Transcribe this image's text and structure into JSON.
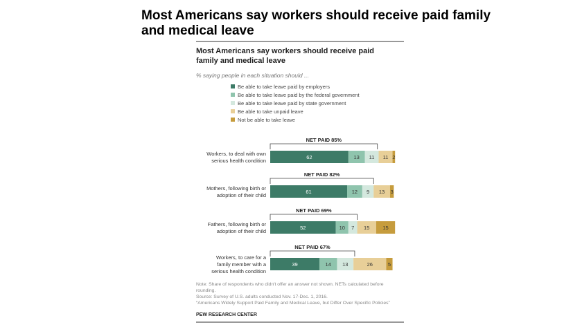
{
  "slide": {
    "title": "Most Americans say workers should receive paid family and medical leave"
  },
  "chart_data": {
    "type": "bar",
    "orientation": "horizontal",
    "stacked": true,
    "title": "Most Americans say workers should receive paid family and medical leave",
    "subtitle": "% saying people in each situation should ...",
    "xlabel": "",
    "ylabel": "",
    "xlim": [
      0,
      100
    ],
    "legend_position": "top",
    "grid": false,
    "categories": [
      "Workers, to deal with own serious health condition",
      "Mothers, following birth or adoption of their child",
      "Fathers, following birth or adoption of their child",
      "Workers, to care for a family member with a serious health condition"
    ],
    "category_lines": [
      [
        "Workers, to deal with own",
        "serious health condition"
      ],
      [
        "Mothers, following birth or",
        "adoption of their child"
      ],
      [
        "Fathers, following birth or",
        "adoption of their child"
      ],
      [
        "Workers, to care for a",
        "family member with a",
        "serious health condition"
      ]
    ],
    "net_labels": [
      "NET PAID 85%",
      "NET PAID 82%",
      "NET PAID 69%",
      "NET PAID 67%"
    ],
    "net_values": [
      85,
      82,
      69,
      67
    ],
    "series": [
      {
        "name": "Be able to take leave paid by employers",
        "color": "#3d7b67",
        "label_color": "#ffffff",
        "values": [
          62,
          61,
          52,
          39
        ]
      },
      {
        "name": "Be able to take leave paid by the federal government",
        "color": "#8fc4ad",
        "label_color": "#333333",
        "values": [
          13,
          12,
          10,
          14
        ]
      },
      {
        "name": "Be able to take leave paid by state government",
        "color": "#d4e8de",
        "label_color": "#333333",
        "values": [
          11,
          9,
          7,
          13
        ]
      },
      {
        "name": "Be able to take unpaid leave",
        "color": "#e8cf98",
        "label_color": "#333333",
        "values": [
          11,
          13,
          15,
          26
        ]
      },
      {
        "name": "Not be able to take leave",
        "color": "#c69c3d",
        "label_color": "#333333",
        "values": [
          2,
          3,
          15,
          5
        ]
      }
    ],
    "notes": [
      "Note: Share of respondents who didn't offer an answer not shown. NETs calculated before",
      "rounding.",
      "Source: Survey of U.S. adults conducted Nov. 17-Dec. 1, 2016.",
      "“Americans Widely Support Paid Family and Medical Leave, but Differ Over Specific Policies”"
    ],
    "source_org": "PEW RESEARCH CENTER"
  }
}
